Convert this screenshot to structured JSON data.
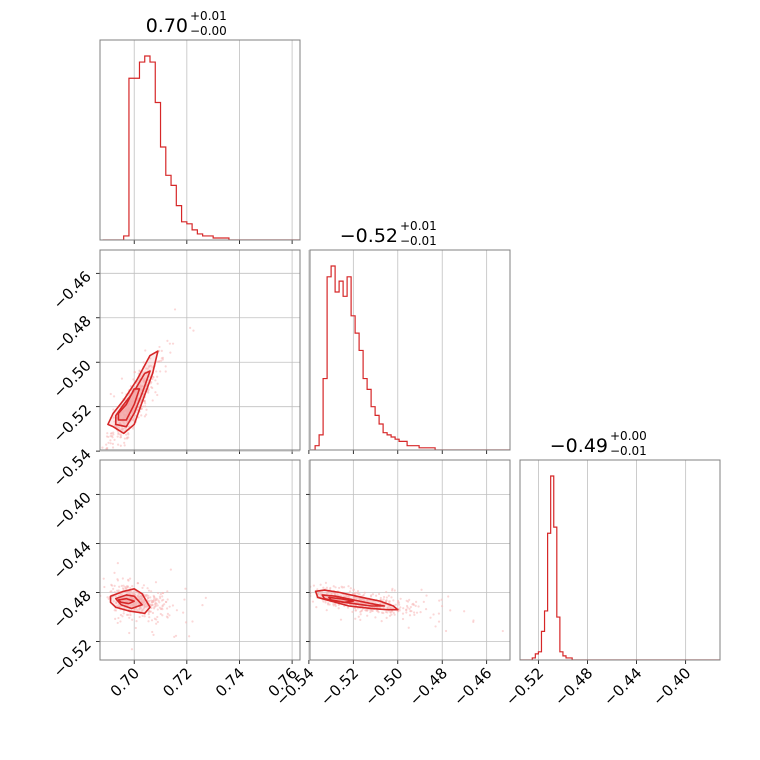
{
  "colors": {
    "series": "#d62728",
    "fill": "#f4a6a7",
    "point": "#f7b6b7"
  },
  "chart_data": {
    "type": "corner",
    "parameters": [
      {
        "range": [
          0.687,
          0.763
        ],
        "ticks": [
          0.7,
          0.72,
          0.74,
          0.76
        ],
        "tick_labels": [
          "0.70",
          "0.72",
          "0.74",
          "0.76"
        ],
        "title": {
          "median": "0.70",
          "plus": "+0.01",
          "minus": "−0.00"
        },
        "histogram": {
          "edges_start": 0.688,
          "bin_width": 0.002,
          "counts": [
            0,
            0,
            0,
            0,
            2,
            80,
            80,
            88,
            91,
            88,
            68,
            46,
            32,
            27,
            17,
            9,
            8,
            5,
            3,
            2,
            2,
            1,
            1,
            1,
            0,
            0,
            0,
            0,
            0,
            0,
            0,
            0,
            0,
            0,
            0,
            0,
            0,
            0
          ]
        }
      },
      {
        "range": [
          -0.5395,
          -0.4495
        ],
        "ticks": [
          -0.54,
          -0.52,
          -0.5,
          -0.48,
          -0.46
        ],
        "tick_labels": [
          "−0.54",
          "−0.52",
          "−0.50",
          "−0.48",
          "−0.46"
        ],
        "title": {
          "median": "−0.52",
          "plus": "+0.01",
          "minus": "−0.01"
        },
        "histogram": {
          "edges_start": -0.539,
          "bin_width": 0.0018,
          "counts": [
            0,
            2,
            7,
            33,
            80,
            85,
            73,
            78,
            71,
            80,
            62,
            54,
            46,
            33,
            28,
            20,
            16,
            12,
            8,
            7,
            6,
            5,
            4,
            4,
            2,
            2,
            2,
            1,
            1,
            1,
            1,
            0,
            0,
            0,
            0,
            0,
            0,
            0,
            0,
            0,
            0,
            0,
            0,
            0,
            0,
            0,
            0,
            0,
            0,
            0
          ]
        }
      },
      {
        "range": [
          -0.535,
          -0.372
        ],
        "ticks": [
          -0.52,
          -0.48,
          -0.44,
          -0.4
        ],
        "tick_labels": [
          "−0.52",
          "−0.48",
          "−0.44",
          "−0.40"
        ],
        "title": {
          "median": "−0.49",
          "plus": "+0.00",
          "minus": "−0.01"
        },
        "histogram": {
          "edges_start": -0.535,
          "bin_width": 0.0025,
          "counts": [
            0,
            0,
            0,
            0,
            1,
            3,
            4,
            14,
            24,
            62,
            90,
            65,
            21,
            4,
            2,
            1,
            1,
            0,
            0,
            0,
            0,
            0,
            0,
            0,
            0,
            0,
            0,
            0,
            0,
            0,
            0,
            0,
            0,
            0,
            0,
            0,
            0,
            0,
            0,
            0,
            0,
            0,
            0,
            0,
            0,
            0,
            0,
            0,
            0,
            0,
            0,
            0,
            0,
            0,
            0,
            0,
            0,
            0,
            0,
            0,
            0,
            0,
            0,
            0,
            0
          ]
        }
      }
    ],
    "pair_plots": [
      {
        "x_param": 0,
        "y_param": 1,
        "samples": {
          "center": [
            0.699,
            -0.52
          ],
          "sd": [
            0.0045,
            0.009
          ],
          "corr": 0.88,
          "n": 520
        },
        "contours": [
          [
            [
              0.692,
              -0.529
            ],
            [
              0.696,
              -0.532
            ],
            [
              0.7,
              -0.528
            ],
            [
              0.703,
              -0.518
            ],
            [
              0.707,
              -0.505
            ],
            [
              0.709,
              -0.495
            ],
            [
              0.706,
              -0.497
            ],
            [
              0.701,
              -0.508
            ],
            [
              0.696,
              -0.517
            ],
            [
              0.692,
              -0.523
            ],
            [
              0.69,
              -0.528
            ]
          ],
          [
            [
              0.693,
              -0.528
            ],
            [
              0.697,
              -0.529
            ],
            [
              0.7,
              -0.523
            ],
            [
              0.703,
              -0.514
            ],
            [
              0.706,
              -0.504
            ],
            [
              0.704,
              -0.505
            ],
            [
              0.7,
              -0.513
            ],
            [
              0.696,
              -0.519
            ],
            [
              0.693,
              -0.524
            ]
          ],
          [
            [
              0.694,
              -0.526
            ],
            [
              0.697,
              -0.526
            ],
            [
              0.7,
              -0.519
            ],
            [
              0.702,
              -0.512
            ],
            [
              0.7,
              -0.512
            ],
            [
              0.697,
              -0.519
            ],
            [
              0.694,
              -0.523
            ]
          ]
        ]
      },
      {
        "x_param": 0,
        "y_param": 2,
        "samples": {
          "center": [
            0.701,
            -0.487
          ],
          "sd": [
            0.0055,
            0.006
          ],
          "corr": -0.35,
          "n": 420
        },
        "contours": [
          [
            [
              0.691,
              -0.483
            ],
            [
              0.696,
              -0.479
            ],
            [
              0.7,
              -0.477
            ],
            [
              0.703,
              -0.481
            ],
            [
              0.706,
              -0.492
            ],
            [
              0.704,
              -0.497
            ],
            [
              0.698,
              -0.495
            ],
            [
              0.693,
              -0.492
            ],
            [
              0.691,
              -0.488
            ]
          ],
          [
            [
              0.693,
              -0.485
            ],
            [
              0.697,
              -0.482
            ],
            [
              0.7,
              -0.483
            ],
            [
              0.703,
              -0.49
            ],
            [
              0.699,
              -0.493
            ],
            [
              0.695,
              -0.49
            ]
          ],
          [
            [
              0.694,
              -0.486
            ],
            [
              0.697,
              -0.485
            ],
            [
              0.7,
              -0.487
            ],
            [
              0.698,
              -0.489
            ],
            [
              0.695,
              -0.488
            ]
          ]
        ]
      },
      {
        "x_param": 1,
        "y_param": 2,
        "samples": {
          "center": [
            -0.516,
            -0.488
          ],
          "sd": [
            0.011,
            0.005
          ],
          "corr": -0.6,
          "n": 480
        },
        "contours": [
          [
            [
              -0.537,
              -0.479
            ],
            [
              -0.533,
              -0.478
            ],
            [
              -0.526,
              -0.48
            ],
            [
              -0.516,
              -0.484
            ],
            [
              -0.508,
              -0.487
            ],
            [
              -0.502,
              -0.491
            ],
            [
              -0.5,
              -0.494
            ],
            [
              -0.505,
              -0.494
            ],
            [
              -0.512,
              -0.493
            ],
            [
              -0.522,
              -0.491
            ],
            [
              -0.53,
              -0.487
            ],
            [
              -0.536,
              -0.484
            ]
          ],
          [
            [
              -0.534,
              -0.482
            ],
            [
              -0.528,
              -0.483
            ],
            [
              -0.52,
              -0.486
            ],
            [
              -0.512,
              -0.489
            ],
            [
              -0.506,
              -0.491
            ],
            [
              -0.512,
              -0.491
            ],
            [
              -0.52,
              -0.489
            ],
            [
              -0.528,
              -0.487
            ],
            [
              -0.533,
              -0.485
            ]
          ],
          [
            [
              -0.531,
              -0.484
            ],
            [
              -0.526,
              -0.485
            ],
            [
              -0.52,
              -0.487
            ],
            [
              -0.524,
              -0.488
            ],
            [
              -0.53,
              -0.486
            ]
          ]
        ]
      }
    ]
  }
}
